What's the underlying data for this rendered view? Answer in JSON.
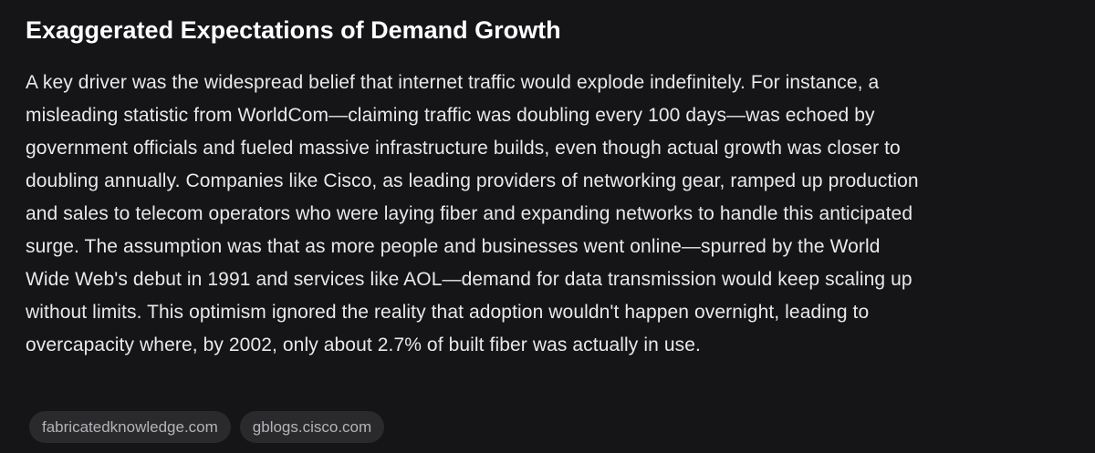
{
  "heading": "Exaggerated Expectations of Demand Growth",
  "paragraph": {
    "lines": [
      "A key driver was the widespread belief that internet traffic would explode indefinitely. For instance, a",
      "misleading statistic from WorldCom—claiming traffic was doubling every 100 days—was echoed by",
      "government officials and fueled massive infrastructure builds, even though actual growth was closer to",
      "doubling annually. Companies like Cisco, as leading providers of networking gear, ramped up production",
      "and sales to telecom operators who were laying fiber and expanding networks to handle this anticipated",
      "surge. The assumption was that as more people and businesses went online—spurred by the World",
      "Wide Web's debut in 1991 and services like AOL—demand for data transmission would keep scaling up",
      "without limits. This optimism ignored the reality that adoption wouldn't happen overnight, leading to",
      "overcapacity where, by 2002, only about 2.7% of built fiber was actually in use."
    ]
  },
  "sources": [
    "fabricatedknowledge.com",
    "gblogs.cisco.com"
  ]
}
